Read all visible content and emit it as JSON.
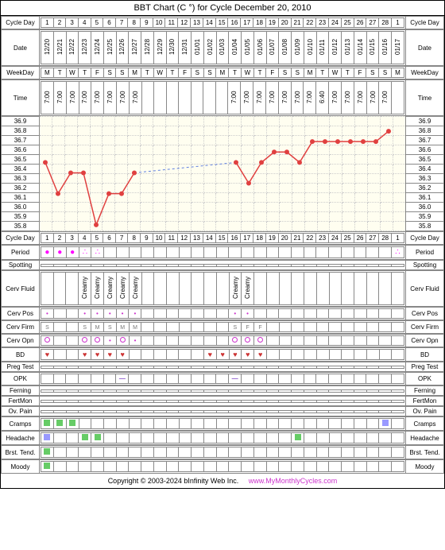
{
  "title": "BBT Chart (C °) for Cycle December 20, 2010",
  "labels": {
    "cycleDay": "Cycle Day",
    "date": "Date",
    "weekday": "WeekDay",
    "time": "Time",
    "period": "Period",
    "spotting": "Spotting",
    "cervFluid": "Cerv Fluid",
    "cervPos": "Cerv Pos",
    "cervFirm": "Cerv Firm",
    "cervOpn": "Cerv Opn",
    "bd": "BD",
    "pregTest": "Preg Test",
    "opk": "OPK",
    "ferning": "Ferning",
    "fertMon": "FertMon",
    "ovPain": "Ov. Pain",
    "cramps": "Cramps",
    "headache": "Headache",
    "brstTend": "Brst. Tend.",
    "moody": "Moody"
  },
  "days": [
    1,
    2,
    3,
    4,
    5,
    6,
    7,
    8,
    9,
    10,
    11,
    12,
    13,
    14,
    15,
    16,
    17,
    18,
    19,
    20,
    21,
    22,
    23,
    24,
    25,
    26,
    27,
    28,
    1
  ],
  "dates": [
    "12/20",
    "12/21",
    "12/22",
    "12/23",
    "12/24",
    "12/25",
    "12/26",
    "12/27",
    "12/28",
    "12/29",
    "12/30",
    "12/31",
    "01/01",
    "01/02",
    "01/03",
    "01/04",
    "01/05",
    "01/06",
    "01/07",
    "01/08",
    "01/09",
    "01/10",
    "01/11",
    "01/12",
    "01/13",
    "01/14",
    "01/15",
    "01/16",
    "01/17"
  ],
  "weekdays": [
    "M",
    "T",
    "W",
    "T",
    "F",
    "S",
    "S",
    "M",
    "T",
    "W",
    "T",
    "F",
    "S",
    "S",
    "M",
    "T",
    "W",
    "T",
    "F",
    "S",
    "S",
    "M",
    "T",
    "W",
    "T",
    "F",
    "S",
    "S",
    "M"
  ],
  "times": [
    "7:00",
    "7:00",
    "7:00",
    "7:00",
    "7:00",
    "7:00",
    "7:00",
    "7:00",
    "",
    "",
    "",
    "",
    "",
    "",
    "",
    "7:00",
    "7:00",
    "7:00",
    "7:00",
    "7:00",
    "7:00",
    "7:00",
    "6:40",
    "7:00",
    "7:00",
    "7:00",
    "7:00",
    "7:00",
    ""
  ],
  "tempScale": [
    "36.9",
    "36.8",
    "36.7",
    "36.6",
    "36.5",
    "36.4",
    "36.3",
    "36.2",
    "36.1",
    "36.0",
    "35.9",
    "35.8"
  ],
  "tempData": {
    "points": [
      {
        "day": 1,
        "temp": 36.5
      },
      {
        "day": 2,
        "temp": 36.2
      },
      {
        "day": 3,
        "temp": 36.4
      },
      {
        "day": 4,
        "temp": 36.4
      },
      {
        "day": 5,
        "temp": 35.9
      },
      {
        "day": 6,
        "temp": 36.2
      },
      {
        "day": 7,
        "temp": 36.2
      },
      {
        "day": 8,
        "temp": 36.4
      },
      {
        "day": 16,
        "temp": 36.5
      },
      {
        "day": 17,
        "temp": 36.3
      },
      {
        "day": 18,
        "temp": 36.5
      },
      {
        "day": 19,
        "temp": 36.6
      },
      {
        "day": 20,
        "temp": 36.6
      },
      {
        "day": 21,
        "temp": 36.5
      },
      {
        "day": 22,
        "temp": 36.7
      },
      {
        "day": 23,
        "temp": 36.7
      },
      {
        "day": 24,
        "temp": 36.7
      },
      {
        "day": 25,
        "temp": 36.7
      },
      {
        "day": 26,
        "temp": 36.7
      },
      {
        "day": 27,
        "temp": 36.7
      },
      {
        "day": 28,
        "temp": 36.8
      }
    ],
    "dashedGap": {
      "from": 8,
      "to": 16
    },
    "lineColor": "#e04040",
    "dashColor": "#6080e0",
    "pointRadius": 3,
    "ymin": 35.8,
    "ymax": 36.9
  },
  "period": [
    "●",
    "●",
    "●",
    "∴",
    "∴",
    "",
    "",
    "",
    "",
    "",
    "",
    "",
    "",
    "",
    "",
    "",
    "",
    "",
    "",
    "",
    "",
    "",
    "",
    "",
    "",
    "",
    "",
    "",
    "∴"
  ],
  "cervFluid": [
    "",
    "",
    "",
    "Creamy",
    "Creamy",
    "Creamy",
    "Creamy",
    "Creamy",
    "",
    "",
    "",
    "",
    "",
    "",
    "",
    "Creamy",
    "Creamy",
    "",
    "",
    "",
    "",
    "",
    "",
    "",
    "",
    "",
    "",
    "",
    ""
  ],
  "cervPos": [
    "•",
    "",
    "",
    "•",
    "•",
    "•",
    "•",
    "•",
    "",
    "",
    "",
    "",
    "",
    "",
    "",
    "•",
    "•",
    "",
    "",
    "",
    "",
    "",
    "",
    "",
    "",
    "",
    "",
    "",
    ""
  ],
  "cervFirm": [
    "S",
    "",
    "",
    "S",
    "M",
    "S",
    "M",
    "M",
    "",
    "",
    "",
    "",
    "",
    "",
    "",
    "S",
    "F",
    "F",
    "",
    "",
    "",
    "",
    "",
    "",
    "",
    "",
    "",
    "",
    ""
  ],
  "cervOpn": [
    "O",
    "",
    "",
    "O",
    "O",
    "•",
    "O",
    "•",
    "",
    "",
    "",
    "",
    "",
    "",
    "",
    "O",
    "O",
    "O",
    "",
    "",
    "",
    "",
    "",
    "",
    "",
    "",
    "",
    "",
    ""
  ],
  "bd": [
    "♥",
    "",
    "",
    "♥",
    "♥",
    "♥",
    "♥",
    "",
    "",
    "",
    "",
    "",
    "",
    "♥",
    "♥",
    "♥",
    "♥",
    "♥",
    "",
    "",
    "",
    "",
    "",
    "",
    "",
    "",
    "",
    "",
    ""
  ],
  "opk": [
    "",
    "",
    "",
    "",
    "",
    "",
    "—",
    "",
    "",
    "",
    "",
    "",
    "",
    "",
    "",
    "—",
    "",
    "",
    "",
    "",
    "",
    "",
    "",
    "",
    "",
    "",
    "",
    "",
    ""
  ],
  "cramps": [
    "g",
    "g",
    "g",
    "",
    "",
    "",
    "",
    "",
    "",
    "",
    "",
    "",
    "",
    "",
    "",
    "",
    "",
    "",
    "",
    "",
    "",
    "",
    "",
    "",
    "",
    "",
    "",
    "b",
    ""
  ],
  "headache": [
    "b",
    "",
    "",
    "g",
    "g",
    "",
    "",
    "",
    "",
    "",
    "",
    "",
    "",
    "",
    "",
    "",
    "",
    "",
    "",
    "",
    "g",
    "",
    "",
    "",
    "",
    "",
    "",
    "",
    ""
  ],
  "brstTend": [
    "g",
    "",
    "",
    "",
    "",
    "",
    "",
    "",
    "",
    "",
    "",
    "",
    "",
    "",
    "",
    "",
    "",
    "",
    "",
    "",
    "",
    "",
    "",
    "",
    "",
    "",
    "",
    "",
    ""
  ],
  "moody": [
    "g",
    "",
    "",
    "",
    "",
    "",
    "",
    "",
    "",
    "",
    "",
    "",
    "",
    "",
    "",
    "",
    "",
    "",
    "",
    "",
    "",
    "",
    "",
    "",
    "",
    "",
    "",
    "",
    ""
  ],
  "footer": {
    "copyright": "Copyright © 2003-2024 bInfinity Web Inc.",
    "url": "www.MyMonthlyCycles.com"
  },
  "colors": {
    "period": "#f000f0",
    "green": "#66cc66",
    "blue": "#9999ff",
    "heart": "#cc3333",
    "link": "#cc33cc",
    "chartBg": "#fffef0"
  }
}
